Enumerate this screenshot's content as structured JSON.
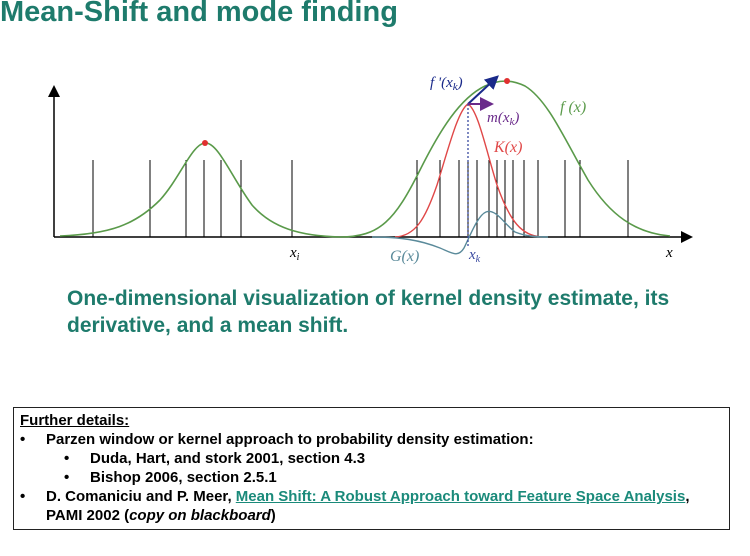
{
  "title": "Mean-Shift and mode finding",
  "figure": {
    "labels": {
      "f_prime": "f '(x",
      "f_prime_sub": "k",
      "f_prime_close": ")",
      "m": "m(x",
      "m_sub": "k",
      "m_close": ")",
      "f": "f (x)",
      "K": "K(x)",
      "G": "G(x)",
      "x_i": "x",
      "x_i_sub": "i",
      "x_k": "x",
      "x_k_sub": "k",
      "x_axis": "x"
    },
    "colors": {
      "kde": "#5a9a4a",
      "kernel": "#e04848",
      "gradient_kernel": "#5a8a9a",
      "mode_point": "#e03030",
      "mean_shift_arrow": "#6a2a8a",
      "derivative_arrow": "#1a2a8a",
      "dotted_line": "#3a4aa0",
      "sample_lines": "#000000"
    }
  },
  "caption": "One-dimensional visualization of kernel density estimate, its derivative, and a mean shift.",
  "details": {
    "heading": "Further details:",
    "bullet_symbol": "•",
    "items": [
      {
        "text": "Parzen window or kernel approach to probability density estimation:"
      },
      {
        "sub": true,
        "text": "Duda, Hart, and stork 2001, section 4.3"
      },
      {
        "sub": true,
        "text": "Bishop 2006, section 2.5.1"
      }
    ],
    "last_item": {
      "prefix": "D. Comaniciu and P. Meer, ",
      "link": "Mean Shift: A Robust Approach toward Feature Space Analysis",
      "middle": ", PAMI 2002  (",
      "italic": "copy on blackboard",
      "suffix": ")"
    }
  }
}
